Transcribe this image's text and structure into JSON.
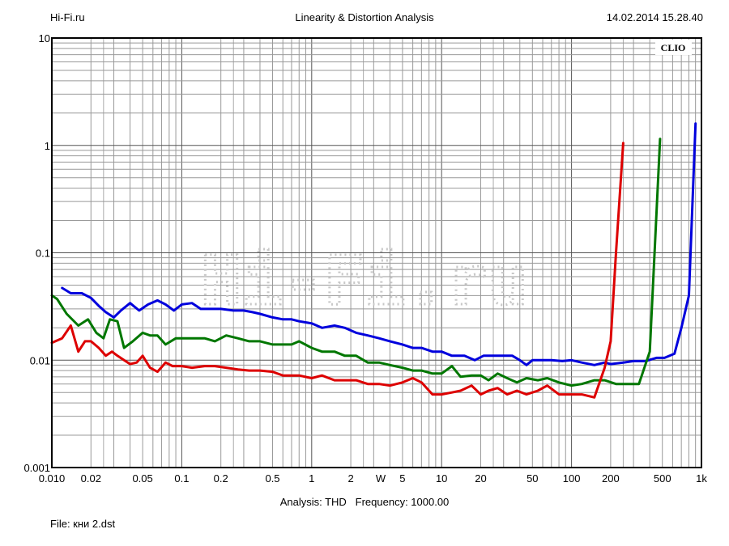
{
  "header": {
    "left": "Hi-Fi.ru",
    "center": "Linearity & Distortion Analysis",
    "right": "14.02.2014 15.28.40"
  },
  "footer": {
    "analysis": "Analysis: THD   Frequency: 1000.00",
    "file": "File: кни 2.dst"
  },
  "badge": "CLIO",
  "watermark": "Hi-Fi.ru",
  "chart_data": {
    "type": "line",
    "title": "Linearity & Distortion Analysis",
    "xlabel": "",
    "ylabel": "",
    "x_scale": "log",
    "y_scale": "log",
    "xlim": [
      0.01,
      1000
    ],
    "ylim": [
      0.001,
      10
    ],
    "grid": true,
    "x_ticks": [
      {
        "v": 0.01,
        "label": "0.010"
      },
      {
        "v": 0.02,
        "label": "0.02"
      },
      {
        "v": 0.05,
        "label": "0.05"
      },
      {
        "v": 0.1,
        "label": "0.1"
      },
      {
        "v": 0.2,
        "label": "0.2"
      },
      {
        "v": 0.5,
        "label": "0.5"
      },
      {
        "v": 1,
        "label": "1"
      },
      {
        "v": 2,
        "label": "2"
      },
      {
        "v": 3.4,
        "label": "W"
      },
      {
        "v": 5,
        "label": "5"
      },
      {
        "v": 10,
        "label": "10"
      },
      {
        "v": 20,
        "label": "20"
      },
      {
        "v": 50,
        "label": "50"
      },
      {
        "v": 100,
        "label": "100"
      },
      {
        "v": 200,
        "label": "200"
      },
      {
        "v": 500,
        "label": "500"
      },
      {
        "v": 1000,
        "label": "1k"
      }
    ],
    "y_ticks": [
      {
        "v": 10,
        "label": "10"
      },
      {
        "v": 1,
        "label": "1"
      },
      {
        "v": 0.1,
        "label": "0.1"
      },
      {
        "v": 0.01,
        "label": "0.01"
      },
      {
        "v": 0.001,
        "label": "0.001"
      }
    ],
    "series": [
      {
        "color": "#0000dd",
        "x": [
          0.012,
          0.014,
          0.017,
          0.02,
          0.023,
          0.026,
          0.03,
          0.034,
          0.04,
          0.047,
          0.055,
          0.065,
          0.075,
          0.087,
          0.1,
          0.12,
          0.14,
          0.17,
          0.2,
          0.25,
          0.3,
          0.35,
          0.4,
          0.5,
          0.6,
          0.7,
          0.8,
          1.0,
          1.2,
          1.5,
          1.8,
          2.2,
          2.7,
          3.3,
          4.0,
          5.0,
          6.0,
          7.0,
          8.5,
          10,
          12,
          15,
          18,
          21,
          25,
          30,
          35,
          40,
          45,
          50,
          60,
          70,
          85,
          100,
          120,
          150,
          180,
          200,
          250,
          300,
          370,
          450,
          520,
          620,
          700,
          800,
          900
        ],
        "y": [
          0.047,
          0.042,
          0.042,
          0.038,
          0.032,
          0.028,
          0.025,
          0.029,
          0.034,
          0.029,
          0.033,
          0.036,
          0.033,
          0.029,
          0.033,
          0.034,
          0.03,
          0.03,
          0.03,
          0.029,
          0.029,
          0.028,
          0.027,
          0.025,
          0.024,
          0.024,
          0.023,
          0.022,
          0.02,
          0.021,
          0.02,
          0.018,
          0.017,
          0.016,
          0.015,
          0.014,
          0.013,
          0.013,
          0.012,
          0.012,
          0.011,
          0.011,
          0.01,
          0.011,
          0.011,
          0.011,
          0.011,
          0.01,
          0.009,
          0.01,
          0.01,
          0.01,
          0.0098,
          0.01,
          0.0095,
          0.009,
          0.0095,
          0.0092,
          0.0095,
          0.0098,
          0.0098,
          0.0105,
          0.0105,
          0.0115,
          0.02,
          0.04,
          1.6
        ]
      },
      {
        "color": "#007700",
        "x": [
          0.01,
          0.011,
          0.013,
          0.016,
          0.019,
          0.022,
          0.025,
          0.028,
          0.032,
          0.036,
          0.042,
          0.05,
          0.057,
          0.065,
          0.075,
          0.09,
          0.1,
          0.12,
          0.15,
          0.18,
          0.22,
          0.27,
          0.33,
          0.4,
          0.5,
          0.6,
          0.7,
          0.8,
          1.0,
          1.2,
          1.5,
          1.8,
          2.2,
          2.7,
          3.3,
          4.0,
          5.0,
          6.0,
          7.0,
          8.5,
          10,
          12,
          14,
          17,
          20,
          23,
          27,
          32,
          38,
          45,
          55,
          65,
          80,
          100,
          120,
          150,
          180,
          220,
          260,
          330,
          400,
          480
        ],
        "y": [
          0.04,
          0.037,
          0.027,
          0.021,
          0.024,
          0.018,
          0.016,
          0.024,
          0.023,
          0.013,
          0.015,
          0.018,
          0.017,
          0.017,
          0.014,
          0.016,
          0.016,
          0.016,
          0.016,
          0.015,
          0.017,
          0.016,
          0.015,
          0.015,
          0.014,
          0.014,
          0.014,
          0.015,
          0.013,
          0.012,
          0.012,
          0.011,
          0.011,
          0.0095,
          0.0095,
          0.009,
          0.0085,
          0.008,
          0.008,
          0.0075,
          0.0075,
          0.0088,
          0.007,
          0.0072,
          0.0072,
          0.0065,
          0.0075,
          0.0068,
          0.0062,
          0.0068,
          0.0065,
          0.0068,
          0.0062,
          0.0058,
          0.006,
          0.0065,
          0.0065,
          0.006,
          0.006,
          0.006,
          0.012,
          1.15
        ]
      },
      {
        "color": "#dd0000",
        "x": [
          0.01,
          0.012,
          0.014,
          0.016,
          0.018,
          0.02,
          0.023,
          0.026,
          0.029,
          0.032,
          0.036,
          0.04,
          0.045,
          0.05,
          0.057,
          0.065,
          0.075,
          0.085,
          0.1,
          0.12,
          0.15,
          0.18,
          0.22,
          0.27,
          0.33,
          0.4,
          0.5,
          0.6,
          0.7,
          0.8,
          1.0,
          1.2,
          1.5,
          1.8,
          2.2,
          2.7,
          3.3,
          4.0,
          5.0,
          6.0,
          7.0,
          8.5,
          10,
          12,
          14,
          17,
          20,
          23,
          27,
          32,
          38,
          45,
          55,
          65,
          80,
          100,
          120,
          150,
          180,
          200,
          220,
          250
        ],
        "y": [
          0.0145,
          0.016,
          0.021,
          0.012,
          0.015,
          0.015,
          0.013,
          0.011,
          0.012,
          0.011,
          0.01,
          0.0092,
          0.0095,
          0.011,
          0.0085,
          0.0078,
          0.0095,
          0.0088,
          0.0088,
          0.0085,
          0.0088,
          0.0088,
          0.0085,
          0.0082,
          0.008,
          0.008,
          0.0078,
          0.0072,
          0.0072,
          0.0072,
          0.0068,
          0.0072,
          0.0065,
          0.0065,
          0.0065,
          0.006,
          0.006,
          0.0058,
          0.0062,
          0.0068,
          0.0062,
          0.0048,
          0.0048,
          0.005,
          0.0052,
          0.0058,
          0.0048,
          0.0052,
          0.0055,
          0.0048,
          0.0052,
          0.0048,
          0.0052,
          0.0058,
          0.0048,
          0.0048,
          0.0048,
          0.0045,
          0.0085,
          0.015,
          0.1,
          1.05
        ]
      }
    ]
  }
}
